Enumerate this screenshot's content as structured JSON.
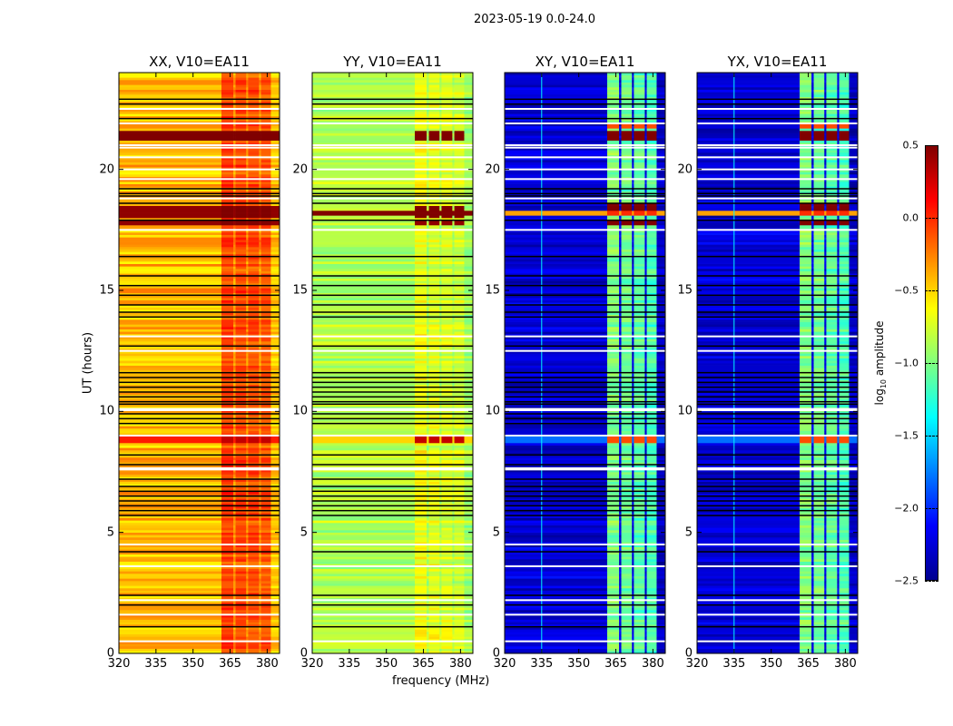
{
  "suptitle": "2023-05-19 0.0-24.0",
  "colors": {
    "flag_black": "#000000",
    "flag_white": "#ffffff"
  },
  "colorbar": {
    "label_prefix": "log",
    "label_sub": "10",
    "label_suffix": " amplitude",
    "range": [
      -2.5,
      0.5
    ],
    "ticks": [
      "0.5",
      "0.0",
      "−0.5",
      "−1.0",
      "−1.5",
      "−2.0",
      "−2.5"
    ],
    "tick_values": [
      0.5,
      0,
      -0.5,
      -1,
      -1.5,
      -2,
      -2.5
    ],
    "colormap": "jet"
  },
  "chart_data": {
    "type": "heatmap",
    "xlabel": "frequency (MHz)",
    "ylabel": "UT (hours)",
    "xlim": [
      320,
      385
    ],
    "ylim": [
      0,
      24
    ],
    "xticks": [
      "320",
      "335",
      "350",
      "365",
      "380"
    ],
    "xtick_values": [
      320,
      335,
      350,
      365,
      380
    ],
    "yticks": [
      "0",
      "5",
      "10",
      "15",
      "20"
    ],
    "ytick_values": [
      0,
      5,
      10,
      15,
      20
    ],
    "segments_mhz": [
      [
        320,
        361.5
      ],
      [
        361.5,
        366.3
      ],
      [
        366.3,
        367.2
      ],
      [
        367.2,
        371.5
      ],
      [
        371.5,
        372.3
      ],
      [
        372.3,
        376.7
      ],
      [
        376.7,
        377.5
      ],
      [
        377.5,
        381.5
      ],
      [
        381.5,
        385
      ]
    ],
    "stripe_segments": [
      1,
      3,
      5,
      7
    ],
    "flagged_black_ut": [
      22.9,
      22.7,
      22.1,
      20.9,
      19.2,
      19.0,
      18.9,
      18.6,
      17.9,
      16.4,
      15.6,
      15.2,
      14.8,
      14.4,
      14.1,
      13.9,
      12.7,
      11.6,
      11.4,
      11.2,
      11.0,
      10.8,
      10.6,
      10.4,
      10.3,
      9.9,
      9.7,
      9.5,
      8.2,
      7.8,
      7.2,
      6.9,
      6.7,
      6.5,
      6.3,
      6.1,
      5.9,
      5.7,
      4.2,
      2.4,
      2.0,
      1.1
    ],
    "flagged_white_ut": [
      22.5,
      21.9,
      21.0,
      20.9,
      20.5,
      20.0,
      19.6,
      18.8,
      17.5,
      13.1,
      12.5,
      10.1,
      10.05,
      9.0,
      7.65,
      7.6,
      4.5,
      3.6,
      2.2,
      1.6,
      0.5
    ],
    "panels": [
      {
        "title": "XX, V10=EA11",
        "levels": [
          -0.42,
          -0.05,
          -0.3,
          -0.08,
          -0.3,
          -0.1,
          -0.3,
          -0.12,
          -0.45
        ],
        "line335": null,
        "events": [
          {
            "ut": [
              21.25,
              21.55
            ],
            "stripe": 0.5,
            "full": 0.5
          },
          {
            "ut": [
              18.0,
              18.5
            ],
            "stripe": 0.5,
            "full": 0.45
          },
          {
            "ut": [
              17.7,
              17.9
            ],
            "stripe": 0.5,
            "full": 0.45
          },
          {
            "ut": [
              8.7,
              9.0
            ],
            "stripe": 0.3,
            "full": 0.05
          }
        ]
      },
      {
        "title": "YY, V10=EA11",
        "levels": [
          -0.85,
          -0.65,
          -0.85,
          -0.7,
          -0.85,
          -0.72,
          -0.85,
          -0.75,
          -0.9
        ],
        "line335": null,
        "events": [
          {
            "ut": [
              21.25,
              21.55
            ],
            "stripe": 0.5,
            "full": null
          },
          {
            "ut": [
              18.0,
              18.5
            ],
            "stripe": 0.5,
            "full": null
          },
          {
            "ut": [
              18.1,
              18.25
            ],
            "stripe": 0.5,
            "full": 0.5
          },
          {
            "ut": [
              17.7,
              17.9
            ],
            "stripe": 0.45,
            "full": null
          },
          {
            "ut": [
              8.7,
              9.0
            ],
            "stripe": 0.3,
            "full": -0.5
          }
        ]
      },
      {
        "title": "XY, V10=EA11",
        "levels": [
          -2.25,
          -1.0,
          -2.2,
          -1.05,
          -2.2,
          -1.1,
          -2.2,
          -1.15,
          -2.3
        ],
        "line335": -1.4,
        "events": [
          {
            "ut": [
              21.25,
              21.55
            ],
            "stripe": 0.5,
            "full": null
          },
          {
            "ut": [
              21.7,
              21.9
            ],
            "stripe": -0.1,
            "full": null
          },
          {
            "ut": [
              18.3,
              18.55
            ],
            "stripe": 0.5,
            "full": null
          },
          {
            "ut": [
              18.1,
              18.25
            ],
            "stripe": 0.0,
            "full": -0.35
          },
          {
            "ut": [
              17.7,
              17.95
            ],
            "stripe": 0.5,
            "full": null
          },
          {
            "ut": [
              8.7,
              9.0
            ],
            "stripe": -0.1,
            "full": -1.8
          }
        ]
      },
      {
        "title": "YX, V10=EA11",
        "levels": [
          -2.25,
          -1.0,
          -2.2,
          -1.05,
          -2.2,
          -1.1,
          -2.2,
          -1.15,
          -2.3
        ],
        "line335": -1.4,
        "events": [
          {
            "ut": [
              21.25,
              21.55
            ],
            "stripe": 0.5,
            "full": null
          },
          {
            "ut": [
              21.7,
              21.9
            ],
            "stripe": -0.1,
            "full": null
          },
          {
            "ut": [
              18.3,
              18.55
            ],
            "stripe": 0.5,
            "full": null
          },
          {
            "ut": [
              18.1,
              18.25
            ],
            "stripe": 0.0,
            "full": -0.35
          },
          {
            "ut": [
              17.7,
              17.95
            ],
            "stripe": 0.5,
            "full": null
          },
          {
            "ut": [
              8.7,
              9.0
            ],
            "stripe": -0.1,
            "full": -1.8
          }
        ]
      }
    ]
  }
}
